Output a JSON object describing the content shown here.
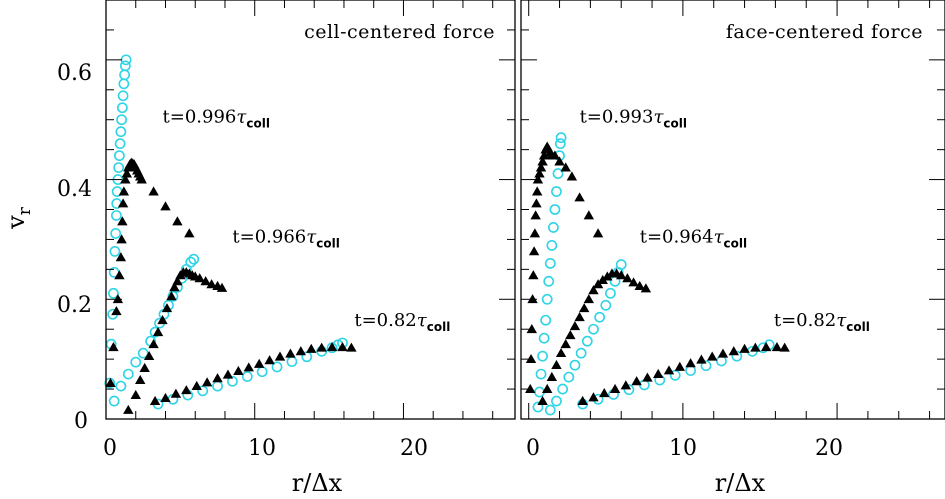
{
  "chart_data": [
    {
      "type": "scatter",
      "title": "cell-centered force",
      "xlabel": "r/Δx",
      "ylabel": "v_r",
      "xlim": [
        0,
        27.5
      ],
      "ylim": [
        0,
        0.7
      ],
      "xticks": [
        "0",
        "10",
        "20"
      ],
      "yticks": [
        "0",
        "0.2",
        "0.4",
        "0.6"
      ],
      "colors": {
        "circles": "#2dd4e6",
        "triangles": "#000000"
      },
      "annotations": [
        {
          "t": "t=0.996",
          "sym": "τ",
          "sub": "coll",
          "x": 3.8,
          "y": 0.495
        },
        {
          "t": "t=0.966",
          "sym": "τ",
          "sub": "coll",
          "x": 8.5,
          "y": 0.295
        },
        {
          "t": "t=0.82",
          "sym": "τ",
          "sub": "coll",
          "x": 16.7,
          "y": 0.155
        }
      ],
      "series": [
        {
          "marker": "circle",
          "values": [
            [
              0.25,
              0.06
            ],
            [
              0.35,
              0.125
            ],
            [
              0.45,
              0.175
            ],
            [
              0.5,
              0.21
            ],
            [
              0.55,
              0.245
            ],
            [
              0.6,
              0.28
            ],
            [
              0.65,
              0.31
            ],
            [
              0.7,
              0.34
            ],
            [
              0.72,
              0.36
            ],
            [
              0.75,
              0.38
            ],
            [
              0.8,
              0.4
            ],
            [
              0.85,
              0.42
            ],
            [
              0.9,
              0.44
            ],
            [
              0.95,
              0.46
            ],
            [
              1.0,
              0.48
            ],
            [
              1.05,
              0.5
            ],
            [
              1.1,
              0.52
            ],
            [
              1.15,
              0.54
            ],
            [
              1.2,
              0.56
            ],
            [
              1.25,
              0.575
            ],
            [
              1.3,
              0.59
            ],
            [
              1.35,
              0.6
            ],
            [
              0.55,
              0.03
            ],
            [
              1.0,
              0.055
            ],
            [
              1.5,
              0.075
            ],
            [
              2.0,
              0.095
            ],
            [
              2.5,
              0.11
            ],
            [
              3.0,
              0.13
            ],
            [
              3.3,
              0.145
            ],
            [
              3.6,
              0.16
            ],
            [
              3.9,
              0.175
            ],
            [
              4.2,
              0.19
            ],
            [
              4.5,
              0.205
            ],
            [
              4.8,
              0.22
            ],
            [
              5.1,
              0.235
            ],
            [
              5.4,
              0.25
            ],
            [
              5.7,
              0.262
            ],
            [
              5.9,
              0.267
            ],
            [
              3.5,
              0.025
            ],
            [
              4.5,
              0.033
            ],
            [
              5.5,
              0.04
            ],
            [
              6.5,
              0.047
            ],
            [
              7.5,
              0.055
            ],
            [
              8.5,
              0.063
            ],
            [
              9.5,
              0.071
            ],
            [
              10.5,
              0.079
            ],
            [
              11.5,
              0.087
            ],
            [
              12.5,
              0.096
            ],
            [
              13.5,
              0.104
            ],
            [
              14.5,
              0.113
            ],
            [
              15.2,
              0.119
            ],
            [
              15.6,
              0.124
            ],
            [
              15.9,
              0.127
            ]
          ]
        },
        {
          "marker": "triangle",
          "values": [
            [
              0.3,
              0.06
            ],
            [
              0.5,
              0.12
            ],
            [
              0.7,
              0.18
            ],
            [
              0.8,
              0.2
            ],
            [
              0.9,
              0.24
            ],
            [
              1.0,
              0.27
            ],
            [
              1.05,
              0.3
            ],
            [
              1.1,
              0.33
            ],
            [
              1.15,
              0.36
            ],
            [
              1.2,
              0.38
            ],
            [
              1.3,
              0.4
            ],
            [
              1.4,
              0.41
            ],
            [
              1.5,
              0.42
            ],
            [
              1.6,
              0.425
            ],
            [
              1.7,
              0.428
            ],
            [
              1.8,
              0.427
            ],
            [
              1.9,
              0.425
            ],
            [
              2.0,
              0.42
            ],
            [
              2.1,
              0.415
            ],
            [
              2.2,
              0.41
            ],
            [
              2.3,
              0.405
            ],
            [
              2.4,
              0.4
            ],
            [
              3.2,
              0.38
            ],
            [
              4.0,
              0.355
            ],
            [
              4.8,
              0.33
            ],
            [
              5.6,
              0.31
            ],
            [
              1.5,
              0.015
            ],
            [
              2.0,
              0.04
            ],
            [
              2.3,
              0.065
            ],
            [
              2.6,
              0.085
            ],
            [
              2.9,
              0.105
            ],
            [
              3.2,
              0.125
            ],
            [
              3.5,
              0.145
            ],
            [
              3.8,
              0.165
            ],
            [
              4.1,
              0.185
            ],
            [
              4.4,
              0.205
            ],
            [
              4.6,
              0.22
            ],
            [
              4.8,
              0.23
            ],
            [
              5.0,
              0.24
            ],
            [
              5.2,
              0.245
            ],
            [
              5.4,
              0.245
            ],
            [
              5.6,
              0.243
            ],
            [
              5.8,
              0.24
            ],
            [
              6.0,
              0.238
            ],
            [
              6.3,
              0.235
            ],
            [
              6.7,
              0.23
            ],
            [
              7.1,
              0.225
            ],
            [
              7.5,
              0.222
            ],
            [
              7.8,
              0.219
            ],
            [
              3.3,
              0.03
            ],
            [
              4.0,
              0.035
            ],
            [
              4.7,
              0.042
            ],
            [
              5.4,
              0.048
            ],
            [
              6.1,
              0.055
            ],
            [
              6.8,
              0.061
            ],
            [
              7.5,
              0.068
            ],
            [
              8.2,
              0.074
            ],
            [
              8.9,
              0.08
            ],
            [
              9.6,
              0.086
            ],
            [
              10.3,
              0.092
            ],
            [
              11.0,
              0.098
            ],
            [
              11.7,
              0.104
            ],
            [
              12.4,
              0.109
            ],
            [
              13.1,
              0.113
            ],
            [
              13.8,
              0.117
            ],
            [
              14.5,
              0.119
            ],
            [
              15.2,
              0.12
            ],
            [
              15.9,
              0.12
            ],
            [
              16.5,
              0.119
            ]
          ]
        }
      ]
    },
    {
      "type": "scatter",
      "title": "face-centered force",
      "xlabel": "r/Δx",
      "ylabel": "",
      "xlim": [
        -0.5,
        27
      ],
      "ylim": [
        0,
        0.7
      ],
      "xticks": [
        "0",
        "10",
        "20"
      ],
      "yticks": [],
      "colors": {
        "circles": "#2dd4e6",
        "triangles": "#000000"
      },
      "annotations": [
        {
          "t": "t=0.993",
          "sym": "τ",
          "sub": "coll",
          "x": 3.3,
          "y": 0.495
        },
        {
          "t": "t=0.964",
          "sym": "τ",
          "sub": "coll",
          "x": 7.2,
          "y": 0.295
        },
        {
          "t": "t=0.82",
          "sym": "τ",
          "sub": "coll",
          "x": 15.9,
          "y": 0.155
        }
      ],
      "series": [
        {
          "marker": "circle",
          "values": [
            [
              0.6,
              0.02
            ],
            [
              0.7,
              0.045
            ],
            [
              0.8,
              0.075
            ],
            [
              0.9,
              0.105
            ],
            [
              1.0,
              0.135
            ],
            [
              1.1,
              0.165
            ],
            [
              1.2,
              0.2
            ],
            [
              1.3,
              0.23
            ],
            [
              1.4,
              0.26
            ],
            [
              1.5,
              0.29
            ],
            [
              1.6,
              0.32
            ],
            [
              1.7,
              0.35
            ],
            [
              1.8,
              0.38
            ],
            [
              1.9,
              0.41
            ],
            [
              2.0,
              0.44
            ],
            [
              2.05,
              0.46
            ],
            [
              2.1,
              0.47
            ],
            [
              1.4,
              0.015
            ],
            [
              1.8,
              0.03
            ],
            [
              2.2,
              0.05
            ],
            [
              2.6,
              0.07
            ],
            [
              3.0,
              0.09
            ],
            [
              3.4,
              0.11
            ],
            [
              3.8,
              0.13
            ],
            [
              4.2,
              0.15
            ],
            [
              4.6,
              0.17
            ],
            [
              5.0,
              0.19
            ],
            [
              5.3,
              0.21
            ],
            [
              5.6,
              0.23
            ],
            [
              5.8,
              0.245
            ],
            [
              6.0,
              0.258
            ],
            [
              3.5,
              0.025
            ],
            [
              4.5,
              0.033
            ],
            [
              5.5,
              0.041
            ],
            [
              6.5,
              0.049
            ],
            [
              7.5,
              0.057
            ],
            [
              8.5,
              0.065
            ],
            [
              9.5,
              0.073
            ],
            [
              10.5,
              0.081
            ],
            [
              11.5,
              0.089
            ],
            [
              12.5,
              0.097
            ],
            [
              13.5,
              0.105
            ],
            [
              14.5,
              0.113
            ],
            [
              15.2,
              0.119
            ],
            [
              15.6,
              0.124
            ]
          ]
        },
        {
          "marker": "triangle",
          "values": [
            [
              0.1,
              0.05
            ],
            [
              0.15,
              0.1
            ],
            [
              0.2,
              0.15
            ],
            [
              0.25,
              0.2
            ],
            [
              0.3,
              0.24
            ],
            [
              0.35,
              0.28
            ],
            [
              0.4,
              0.31
            ],
            [
              0.45,
              0.34
            ],
            [
              0.5,
              0.36
            ],
            [
              0.55,
              0.38
            ],
            [
              0.6,
              0.4
            ],
            [
              0.7,
              0.41
            ],
            [
              0.8,
              0.42
            ],
            [
              0.9,
              0.43
            ],
            [
              1.0,
              0.44
            ],
            [
              1.1,
              0.45
            ],
            [
              1.2,
              0.455
            ],
            [
              1.3,
              0.45
            ],
            [
              1.4,
              0.445
            ],
            [
              1.5,
              0.44
            ],
            [
              1.7,
              0.44
            ],
            [
              2.0,
              0.43
            ],
            [
              2.4,
              0.42
            ],
            [
              2.8,
              0.405
            ],
            [
              3.3,
              0.37
            ],
            [
              3.9,
              0.34
            ],
            [
              4.5,
              0.31
            ],
            [
              0.9,
              0.03
            ],
            [
              1.2,
              0.05
            ],
            [
              1.5,
              0.07
            ],
            [
              1.8,
              0.09
            ],
            [
              2.1,
              0.11
            ],
            [
              2.4,
              0.125
            ],
            [
              2.7,
              0.14
            ],
            [
              3.0,
              0.155
            ],
            [
              3.3,
              0.17
            ],
            [
              3.6,
              0.185
            ],
            [
              3.9,
              0.2
            ],
            [
              4.2,
              0.215
            ],
            [
              4.5,
              0.225
            ],
            [
              4.8,
              0.232
            ],
            [
              5.1,
              0.238
            ],
            [
              5.4,
              0.243
            ],
            [
              5.7,
              0.243
            ],
            [
              6.0,
              0.24
            ],
            [
              6.4,
              0.235
            ],
            [
              6.8,
              0.228
            ],
            [
              7.2,
              0.222
            ],
            [
              7.6,
              0.218
            ],
            [
              3.5,
              0.03
            ],
            [
              4.2,
              0.036
            ],
            [
              4.9,
              0.043
            ],
            [
              5.6,
              0.05
            ],
            [
              6.3,
              0.056
            ],
            [
              7.0,
              0.063
            ],
            [
              7.7,
              0.069
            ],
            [
              8.4,
              0.075
            ],
            [
              9.1,
              0.081
            ],
            [
              9.8,
              0.087
            ],
            [
              10.5,
              0.093
            ],
            [
              11.2,
              0.099
            ],
            [
              11.9,
              0.104
            ],
            [
              12.6,
              0.109
            ],
            [
              13.3,
              0.113
            ],
            [
              14.0,
              0.117
            ],
            [
              14.7,
              0.119
            ],
            [
              15.4,
              0.12
            ],
            [
              16.1,
              0.12
            ],
            [
              16.6,
              0.119
            ]
          ]
        }
      ]
    }
  ]
}
